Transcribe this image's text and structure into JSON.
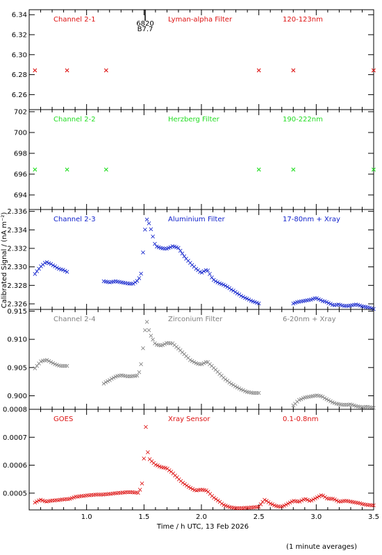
{
  "chart_data": [
    {
      "type": "scatter",
      "panel_id": "ch21",
      "label_left": "Channel 2-1",
      "label_center": "Lyman-alpha Filter",
      "label_right": "120-123nm",
      "color": "#dd1111",
      "ylim": [
        6.245,
        6.345
      ],
      "yticks": [
        6.26,
        6.28,
        6.3,
        6.32,
        6.34
      ],
      "ytick_labels": [
        "6.26",
        "6.28",
        "6.30",
        "6.32",
        "6.34"
      ],
      "annotation": {
        "x": 1.51,
        "text_top": "6820",
        "text_bottom": "B7.7"
      },
      "series": [
        {
          "x": [
            0.55,
            0.83,
            1.17,
            2.5,
            2.8,
            3.5
          ],
          "y": [
            6.284,
            6.284,
            6.284,
            6.284,
            6.284,
            6.284
          ]
        }
      ]
    },
    {
      "type": "scatter",
      "panel_id": "ch22",
      "label_left": "Channel 2-2",
      "label_center": "Herzberg Filter",
      "label_right": "190-222nm",
      "color": "#22dd22",
      "ylim": [
        692.6,
        702.2
      ],
      "yticks": [
        694,
        696,
        698,
        700,
        702
      ],
      "ytick_labels": [
        "694",
        "696",
        "698",
        "700",
        "702"
      ],
      "series": [
        {
          "x": [
            0.55,
            0.83,
            1.17,
            2.5,
            2.8,
            3.5
          ],
          "y": [
            696.4,
            696.4,
            696.4,
            696.4,
            696.4,
            696.4
          ]
        }
      ]
    },
    {
      "type": "scatter",
      "panel_id": "ch23",
      "label_left": "Channel 2-3",
      "label_center": "Aluminium Filter",
      "label_right": "17-80nm + Xray",
      "color": "#1122cc",
      "ylim": [
        2.3254,
        2.3362
      ],
      "yticks": [
        2.326,
        2.328,
        2.33,
        2.332,
        2.334,
        2.336
      ],
      "ytick_labels": [
        "2.326",
        "2.328",
        "2.330",
        "2.332",
        "2.334",
        "2.336"
      ],
      "series": [
        {
          "x": [
            0.55,
            0.6,
            0.65,
            0.7,
            0.75,
            0.8,
            0.83,
            1.15,
            1.2,
            1.25,
            1.3,
            1.35,
            1.4,
            1.45,
            1.48,
            1.5,
            1.52,
            1.55,
            1.6,
            1.65,
            1.7,
            1.75,
            1.8,
            1.85,
            1.9,
            1.95,
            2.0,
            2.05,
            2.1,
            2.15,
            2.2,
            2.25,
            2.3,
            2.35,
            2.4,
            2.45,
            2.5,
            2.8,
            2.85,
            2.9,
            2.95,
            3.0,
            3.05,
            3.1,
            3.15,
            3.2,
            3.25,
            3.3,
            3.35,
            3.4,
            3.45,
            3.5
          ],
          "y": [
            2.3292,
            2.33,
            2.3305,
            2.3302,
            2.3298,
            2.3296,
            2.3294,
            2.3284,
            2.3283,
            2.3284,
            2.3283,
            2.3282,
            2.3281,
            2.3285,
            2.3294,
            2.333,
            2.3352,
            2.3345,
            2.3322,
            2.332,
            2.3319,
            2.3322,
            2.332,
            2.3311,
            2.3304,
            2.3298,
            2.3293,
            2.3297,
            2.3286,
            2.3282,
            2.328,
            2.3276,
            2.3272,
            2.3268,
            2.3265,
            2.3262,
            2.326,
            2.326,
            2.3262,
            2.3263,
            2.3264,
            2.3266,
            2.3263,
            2.3261,
            2.3258,
            2.3259,
            2.3257,
            2.3258,
            2.3259,
            2.3257,
            2.3256,
            2.3254
          ]
        }
      ]
    },
    {
      "type": "scatter",
      "panel_id": "ch24",
      "label_left": "Channel 2-4",
      "label_center": "Zirconium Filter",
      "label_right": "6-20nm + Xray",
      "color": "#808080",
      "ylim": [
        0.8976,
        0.9153
      ],
      "yticks": [
        0.9,
        0.905,
        0.91,
        0.915
      ],
      "ytick_labels": [
        "0.900",
        "0.905",
        "0.910",
        "0.915"
      ],
      "series": [
        {
          "x": [
            0.55,
            0.6,
            0.65,
            0.7,
            0.75,
            0.8,
            0.83,
            1.15,
            1.2,
            1.25,
            1.3,
            1.35,
            1.4,
            1.45,
            1.48,
            1.5,
            1.52,
            1.55,
            1.6,
            1.65,
            1.7,
            1.75,
            1.8,
            1.85,
            1.9,
            1.95,
            2.0,
            2.05,
            2.1,
            2.15,
            2.2,
            2.25,
            2.3,
            2.35,
            2.4,
            2.45,
            2.5,
            2.8,
            2.85,
            2.9,
            2.95,
            3.0,
            3.05,
            3.1,
            3.15,
            3.2,
            3.25,
            3.3,
            3.35,
            3.4,
            3.45,
            3.5
          ],
          "y": [
            0.9048,
            0.906,
            0.9063,
            0.9058,
            0.9053,
            0.9052,
            0.9052,
            0.9021,
            0.9027,
            0.9033,
            0.9036,
            0.9034,
            0.9034,
            0.9035,
            0.906,
            0.91,
            0.9135,
            0.911,
            0.909,
            0.9088,
            0.9093,
            0.9092,
            0.9083,
            0.9073,
            0.9063,
            0.9057,
            0.9055,
            0.906,
            0.905,
            0.904,
            0.903,
            0.9022,
            0.9015,
            0.901,
            0.9006,
            0.9004,
            0.9004,
            0.8982,
            0.8992,
            0.8996,
            0.8998,
            0.9,
            0.8998,
            0.8992,
            0.8987,
            0.8984,
            0.8983,
            0.8984,
            0.8981,
            0.8979,
            0.898,
            0.8978
          ]
        }
      ]
    },
    {
      "type": "scatter",
      "panel_id": "goes",
      "label_left": "GOES",
      "label_center": "Xray Sensor",
      "label_right": "0.1-0.8nm",
      "color": "#dd1111",
      "ylim": [
        0.00044,
        0.0008
      ],
      "yticks": [
        0.0005,
        0.0006,
        0.0007,
        0.0008
      ],
      "ytick_labels": [
        "0.0005",
        "0.0006",
        "0.0007",
        "0.0008"
      ],
      "series": [
        {
          "x": [
            0.55,
            0.6,
            0.65,
            0.7,
            0.75,
            0.8,
            0.85,
            0.9,
            0.95,
            1.0,
            1.05,
            1.1,
            1.15,
            1.2,
            1.25,
            1.3,
            1.35,
            1.4,
            1.45,
            1.48,
            1.5,
            1.51,
            1.52,
            1.53,
            1.55,
            1.6,
            1.65,
            1.7,
            1.75,
            1.8,
            1.85,
            1.9,
            1.95,
            2.0,
            2.05,
            2.1,
            2.15,
            2.2,
            2.25,
            2.3,
            2.35,
            2.4,
            2.45,
            2.5,
            2.55,
            2.6,
            2.65,
            2.7,
            2.75,
            2.8,
            2.85,
            2.9,
            2.95,
            3.0,
            3.05,
            3.1,
            3.15,
            3.2,
            3.25,
            3.3,
            3.35,
            3.4,
            3.45,
            3.5
          ],
          "y": [
            0.000465,
            0.000475,
            0.000468,
            0.000472,
            0.000474,
            0.000476,
            0.000478,
            0.000485,
            0.000488,
            0.00049,
            0.000492,
            0.000494,
            0.000494,
            0.000496,
            0.000498,
            0.0005,
            0.000502,
            0.000502,
            0.0005,
            0.00052,
            0.000625,
            0.000755,
            0.000725,
            0.00065,
            0.00062,
            0.0006,
            0.000592,
            0.000588,
            0.00057,
            0.00055,
            0.000532,
            0.000518,
            0.000508,
            0.000512,
            0.000508,
            0.000485,
            0.00047,
            0.000455,
            0.000448,
            0.000445,
            0.000445,
            0.000446,
            0.000448,
            0.00045,
            0.000475,
            0.000462,
            0.000452,
            0.00045,
            0.00046,
            0.000472,
            0.000468,
            0.000478,
            0.00047,
            0.000482,
            0.000492,
            0.000478,
            0.000478,
            0.000468,
            0.000472,
            0.000468,
            0.000465,
            0.00046,
            0.000456,
            0.000455
          ]
        }
      ]
    }
  ],
  "axes": {
    "xlim": [
      0.5,
      3.5
    ],
    "xticks": [
      1.0,
      1.5,
      2.0,
      2.5,
      3.0,
      3.5
    ],
    "xtick_labels": [
      "1.0",
      "1.5",
      "2.0",
      "2.5",
      "3.0",
      "3.5"
    ],
    "xlabel": "Time / h UTC, 13 Feb 2026",
    "ylabel": "Calibrated Signal / (nA m⁻²)"
  },
  "footnote": "(1 minute averages)",
  "marker": "×"
}
